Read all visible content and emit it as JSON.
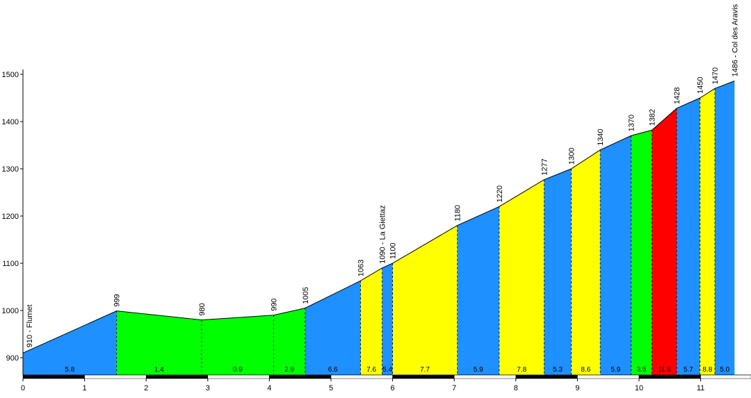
{
  "chart_data": {
    "type": "area",
    "title": "",
    "xlabel": "",
    "ylabel": "",
    "xlim": [
      0,
      11.6
    ],
    "ylim": [
      860,
      1500
    ],
    "x_ticks": [
      "0",
      "1",
      "2",
      "3",
      "4",
      "5",
      "6",
      "7",
      "8",
      "9",
      "10",
      "11"
    ],
    "y_ticks": [
      "900",
      "1000",
      "1100",
      "1200",
      "1300",
      "1400",
      "1500"
    ],
    "points": [
      {
        "x": 0.0,
        "y": 910,
        "label": "910 - Flumet"
      },
      {
        "x": 1.52,
        "y": 999,
        "label": "999"
      },
      {
        "x": 2.9,
        "y": 980,
        "label": "980"
      },
      {
        "x": 4.07,
        "y": 990,
        "label": "990"
      },
      {
        "x": 4.58,
        "y": 1005,
        "label": "1005"
      },
      {
        "x": 5.48,
        "y": 1063,
        "label": "1063"
      },
      {
        "x": 5.83,
        "y": 1090,
        "label": "1090 - La Giettaz"
      },
      {
        "x": 6.0,
        "y": 1100,
        "label": "1100"
      },
      {
        "x": 7.05,
        "y": 1180,
        "label": "1180"
      },
      {
        "x": 7.73,
        "y": 1220,
        "label": "1220"
      },
      {
        "x": 8.46,
        "y": 1277,
        "label": "1277"
      },
      {
        "x": 8.9,
        "y": 1300,
        "label": "1300"
      },
      {
        "x": 9.37,
        "y": 1340,
        "label": "1340"
      },
      {
        "x": 9.87,
        "y": 1370,
        "label": "1370"
      },
      {
        "x": 10.21,
        "y": 1382,
        "label": "1382"
      },
      {
        "x": 10.61,
        "y": 1428,
        "label": "1428"
      },
      {
        "x": 10.99,
        "y": 1450,
        "label": "1450"
      },
      {
        "x": 11.23,
        "y": 1470,
        "label": "1470"
      },
      {
        "x": 11.55,
        "y": 1486,
        "label": "1486 - Col des Aravis"
      }
    ],
    "segments": [
      {
        "grade": "5.8",
        "color": "#1e90ff"
      },
      {
        "grade": "1.4",
        "color": "#00ff00"
      },
      {
        "grade": "0.9",
        "color": "#00ff00"
      },
      {
        "grade": "2.9",
        "color": "#00ff00"
      },
      {
        "grade": "6.6",
        "color": "#1e90ff"
      },
      {
        "grade": "7.6",
        "color": "#ffff00"
      },
      {
        "grade": "5.4",
        "color": "#1e90ff"
      },
      {
        "grade": "7.7",
        "color": "#ffff00"
      },
      {
        "grade": "5.9",
        "color": "#1e90ff"
      },
      {
        "grade": "7.8",
        "color": "#ffff00"
      },
      {
        "grade": "5.3",
        "color": "#1e90ff"
      },
      {
        "grade": "8.6",
        "color": "#ffff00"
      },
      {
        "grade": "5.9",
        "color": "#1e90ff"
      },
      {
        "grade": "3.5",
        "color": "#00ff00"
      },
      {
        "grade": "11.6",
        "color": "#ff0000"
      },
      {
        "grade": "5.7",
        "color": "#1e90ff"
      },
      {
        "grade": "8.8",
        "color": "#ffff00"
      },
      {
        "grade": "5.0",
        "color": "#1e90ff"
      }
    ]
  }
}
